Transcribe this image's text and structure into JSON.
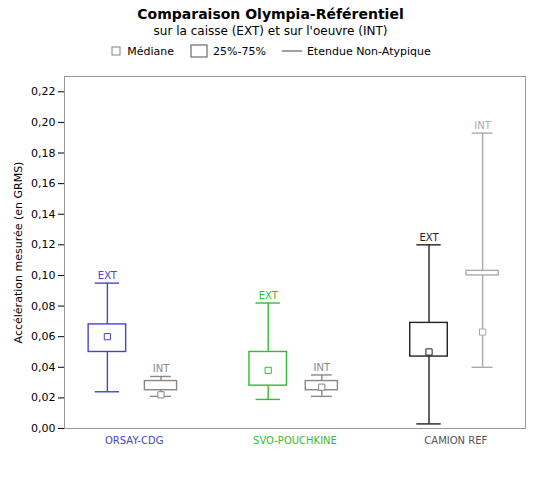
{
  "chart_data": {
    "type": "box",
    "title": "Comparaison Olympia-Référentiel",
    "subtitle": "sur la caisse (EXT) et sur l'oeuvre (INT)",
    "ylabel": "Accélération mesurée (en GRMS)",
    "ylim": [
      0.0,
      0.23
    ],
    "yticks": [
      {
        "value": 0.0,
        "label": "0,00"
      },
      {
        "value": 0.02,
        "label": "0,02"
      },
      {
        "value": 0.04,
        "label": "0,04"
      },
      {
        "value": 0.06,
        "label": "0,06"
      },
      {
        "value": 0.08,
        "label": "0,08"
      },
      {
        "value": 0.1,
        "label": "0,10"
      },
      {
        "value": 0.12,
        "label": "0,12"
      },
      {
        "value": 0.14,
        "label": "0,14"
      },
      {
        "value": 0.16,
        "label": "0,16"
      },
      {
        "value": 0.18,
        "label": "0,18"
      },
      {
        "value": 0.2,
        "label": "0,20"
      },
      {
        "value": 0.22,
        "label": "0,22"
      }
    ],
    "grid": false,
    "tick_labels": "y",
    "legend_entries": [
      "Médiane",
      "25%-75%",
      "Etendue Non-Atypique"
    ],
    "groups": [
      {
        "name": "ORSAY-CDG",
        "color": "#4444cc",
        "boxes": [
          {
            "annotation": "EXT",
            "color": "#4444cc",
            "whisker_low": 0.024,
            "q1": 0.05,
            "median": 0.06,
            "q3": 0.068,
            "whisker_high": 0.095
          },
          {
            "annotation": "INT",
            "color": "#888888",
            "whisker_low": 0.021,
            "q1": 0.025,
            "median": 0.022,
            "q3": 0.031,
            "whisker_high": 0.034
          }
        ]
      },
      {
        "name": "SVO-POUCHKINE",
        "color": "#33bb33",
        "boxes": [
          {
            "annotation": "EXT",
            "color": "#33bb33",
            "whisker_low": 0.019,
            "q1": 0.028,
            "median": 0.038,
            "q3": 0.05,
            "whisker_high": 0.082
          },
          {
            "annotation": "INT",
            "color": "#888888",
            "whisker_low": 0.021,
            "q1": 0.025,
            "median": 0.027,
            "q3": 0.031,
            "whisker_high": 0.035
          }
        ]
      },
      {
        "name": "CAMION REF",
        "color": "#555555",
        "boxes": [
          {
            "annotation": "EXT",
            "color": "#222222",
            "whisker_low": 0.003,
            "q1": 0.047,
            "median": 0.05,
            "q3": 0.069,
            "whisker_high": 0.12
          },
          {
            "annotation": "INT",
            "color": "#aaaaaa",
            "whisker_low": 0.04,
            "q1": 0.1,
            "median": 0.063,
            "q3": 0.103,
            "whisker_high": 0.193
          }
        ]
      }
    ]
  }
}
